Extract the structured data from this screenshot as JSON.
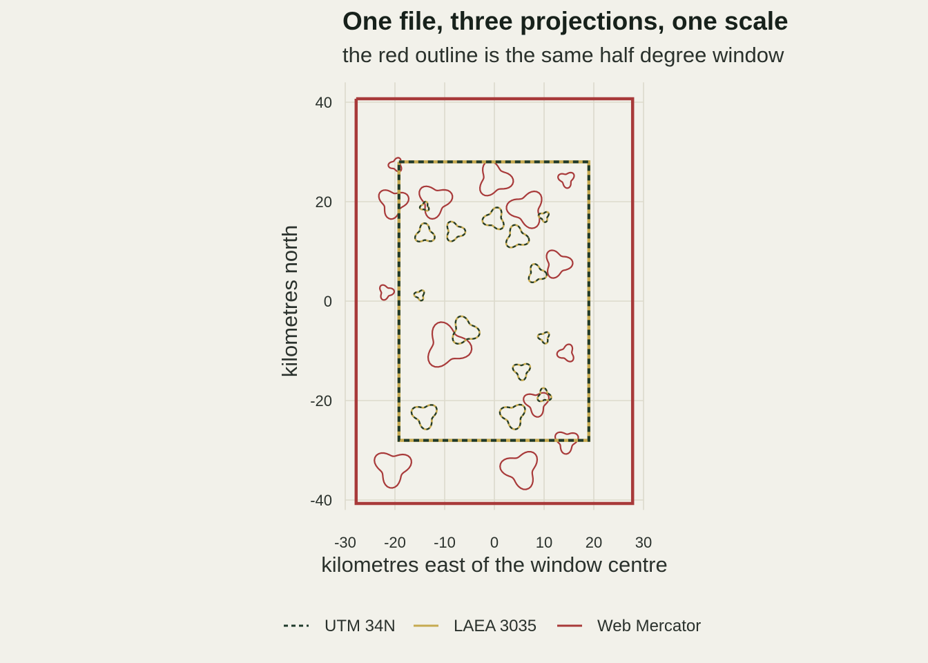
{
  "chart_data": {
    "type": "line",
    "title": "One file, three projections, one scale",
    "subtitle": "the red outline is the same half degree window",
    "xlabel": "kilometres east of the window centre",
    "ylabel": "kilometres north",
    "xlim": [
      -30,
      30
    ],
    "ylim": [
      -42,
      44
    ],
    "xticks": [
      -30,
      -20,
      -10,
      0,
      10,
      20,
      30
    ],
    "yticks": [
      -40,
      -20,
      0,
      20,
      40
    ],
    "grid": true,
    "legend_position": "bottom",
    "colors": {
      "background": "#f2f1ea",
      "grid": "#dcdacb",
      "text": "#2a312c"
    },
    "series": [
      {
        "name": "UTM 34N",
        "color": "#1f3a2b",
        "dash": true,
        "window": [
          [
            -19.2,
            28
          ],
          [
            19,
            28
          ],
          [
            19,
            -28
          ],
          [
            -19.2,
            -28
          ],
          [
            -19.2,
            28
          ]
        ],
        "polygons": [
          {
            "cx": -14,
            "cy": 19,
            "r": 0.8
          },
          {
            "cx": -14,
            "cy": 13.5,
            "r": 1.7
          },
          {
            "cx": -8,
            "cy": 14,
            "r": 1.7
          },
          {
            "cx": 0,
            "cy": 16.5,
            "r": 1.9
          },
          {
            "cx": 4.5,
            "cy": 12.8,
            "r": 2.0
          },
          {
            "cx": 10,
            "cy": 17,
            "r": 0.9
          },
          {
            "cx": 8.5,
            "cy": 5.5,
            "r": 1.6
          },
          {
            "cx": -15,
            "cy": 1.2,
            "r": 0.9
          },
          {
            "cx": -6,
            "cy": -6,
            "r": 2.4
          },
          {
            "cx": 10,
            "cy": -7.3,
            "r": 1.0
          },
          {
            "cx": 5.5,
            "cy": -14,
            "r": 1.5
          },
          {
            "cx": 10,
            "cy": -19,
            "r": 1.2
          },
          {
            "cx": 3.8,
            "cy": -23,
            "r": 2.2
          },
          {
            "cx": -14,
            "cy": -23,
            "r": 2.2
          }
        ]
      },
      {
        "name": "LAEA 3035",
        "color": "#c6aa50",
        "dash": false,
        "window": [
          [
            -19.2,
            28
          ],
          [
            19,
            28
          ],
          [
            19,
            -28
          ],
          [
            -19.2,
            -28
          ],
          [
            -19.2,
            28
          ]
        ],
        "polygons": [
          {
            "cx": -14,
            "cy": 19,
            "r": 0.8
          },
          {
            "cx": -14,
            "cy": 13.5,
            "r": 1.7
          },
          {
            "cx": -8,
            "cy": 14,
            "r": 1.7
          },
          {
            "cx": 0,
            "cy": 16.5,
            "r": 1.9
          },
          {
            "cx": 4.5,
            "cy": 12.8,
            "r": 2.0
          },
          {
            "cx": 10,
            "cy": 17,
            "r": 0.9
          },
          {
            "cx": 8.5,
            "cy": 5.5,
            "r": 1.6
          },
          {
            "cx": -15,
            "cy": 1.2,
            "r": 0.9
          },
          {
            "cx": -6,
            "cy": -6,
            "r": 2.4
          },
          {
            "cx": 10,
            "cy": -7.3,
            "r": 1.0
          },
          {
            "cx": 5.5,
            "cy": -14,
            "r": 1.5
          },
          {
            "cx": 10,
            "cy": -19,
            "r": 1.2
          },
          {
            "cx": 3.8,
            "cy": -23,
            "r": 2.2
          },
          {
            "cx": -14,
            "cy": -23,
            "r": 2.2
          }
        ]
      },
      {
        "name": "Web Mercator",
        "color": "#a83a3a",
        "dash": false,
        "window": [
          [
            -27.8,
            40.7
          ],
          [
            27.8,
            40.7
          ],
          [
            27.8,
            -40.7
          ],
          [
            -27.8,
            -40.7
          ],
          [
            -27.8,
            40.7
          ]
        ],
        "polygons": [
          {
            "cx": -19.8,
            "cy": 27.4,
            "r": 1.2
          },
          {
            "cx": -20.4,
            "cy": 19.8,
            "r": 2.6
          },
          {
            "cx": -12,
            "cy": 20.2,
            "r": 2.9
          },
          {
            "cx": 0,
            "cy": 24.5,
            "r": 3.0
          },
          {
            "cx": 6.5,
            "cy": 18.5,
            "r": 3.2
          },
          {
            "cx": 14.5,
            "cy": 24.5,
            "r": 1.4
          },
          {
            "cx": 12.7,
            "cy": 7.5,
            "r": 2.4
          },
          {
            "cx": -21.8,
            "cy": 1.8,
            "r": 1.3
          },
          {
            "cx": -9.5,
            "cy": -9,
            "r": 3.9
          },
          {
            "cx": 14.5,
            "cy": -10.5,
            "r": 1.5
          },
          {
            "cx": 8.5,
            "cy": -20.5,
            "r": 2.2
          },
          {
            "cx": 14.5,
            "cy": -28.2,
            "r": 2.0
          },
          {
            "cx": -20.5,
            "cy": -33.5,
            "r": 3.2
          },
          {
            "cx": 5.3,
            "cy": -33.8,
            "r": 3.3
          }
        ]
      }
    ]
  }
}
